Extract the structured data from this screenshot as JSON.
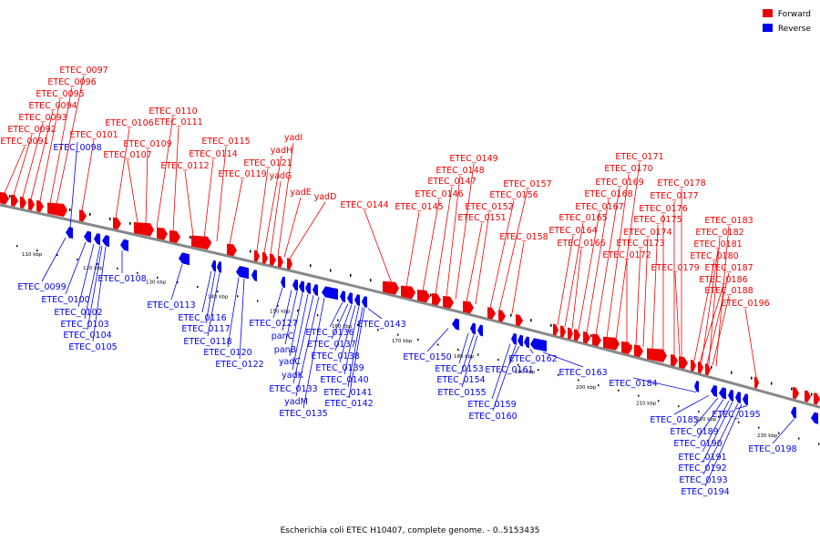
{
  "caption": "Escherichia coli ETEC H10407, complete genome. - 0..5153435",
  "colors": {
    "forward": "#ee0000",
    "reverse": "#0000ee",
    "backbone": "#888888"
  },
  "legend": [
    {
      "label": "Forward",
      "color": "#ee0000"
    },
    {
      "label": "Reverse",
      "color": "#0000ee"
    }
  ],
  "ticks": [
    "110 kbp",
    "120 kbp",
    "130 kbp",
    "140 kbp",
    "150 kbp",
    "160 kbp",
    "170 kbp",
    "180 kbp",
    "190 kbp",
    "200 kbp",
    "210 kbp",
    "220 kbp",
    "230 kbp"
  ],
  "forward_labels": [
    "ETEC_0091",
    "ETEC_0092",
    "ETEC_0093",
    "ETEC_0094",
    "ETEC_0095",
    "ETEC_0096",
    "ETEC_0097",
    "ETEC_0101",
    "ETEC_0106",
    "ETEC_0107",
    "ETEC_0109",
    "ETEC_0110",
    "ETEC_0111",
    "ETEC_0112",
    "ETEC_0114",
    "ETEC_0115",
    "ETEC_0119",
    "ETEC_0121",
    "yadH",
    "yadG",
    "yadI",
    "yadE",
    "yadD",
    "ETEC_0144",
    "ETEC_0145",
    "ETEC_0146",
    "ETEC_0147",
    "ETEC_0148",
    "ETEC_0149",
    "ETEC_0151",
    "ETEC_0152",
    "ETEC_0156",
    "ETEC_0157",
    "ETEC_0158",
    "ETEC_0164",
    "ETEC_0165",
    "ETEC_0166",
    "ETEC_0167",
    "ETEC_0168",
    "ETEC_0169",
    "ETEC_0170",
    "ETEC_0171",
    "ETEC_0172",
    "ETEC_0173",
    "ETEC_0174",
    "ETEC_0175",
    "ETEC_0176",
    "ETEC_0177",
    "ETEC_0178",
    "ETEC_0179",
    "ETEC_0180",
    "ETEC_0181",
    "ETEC_0182",
    "ETEC_0183",
    "ETEC_0186",
    "ETEC_0187",
    "ETEC_0188",
    "ETEC_0196"
  ],
  "reverse_labels": [
    "ETEC_0098",
    "ETEC_0099",
    "ETEC_0100",
    "ETEC_0102",
    "ETEC_0103",
    "ETEC_0104",
    "ETEC_0105",
    "ETEC_0108",
    "ETEC_0113",
    "ETEC_0116",
    "ETEC_0117",
    "ETEC_0118",
    "ETEC_0120",
    "ETEC_0122",
    "ETEC_0127",
    "panC",
    "panB",
    "yadC",
    "yadK",
    "ETEC_0133",
    "yadM",
    "ETEC_0135",
    "ETEC_0136",
    "ETEC_0137",
    "ETEC_0138",
    "ETEC_0139",
    "ETEC_0140",
    "ETEC_0141",
    "ETEC_0142",
    "ETEC_0143",
    "ETEC_0150",
    "ETEC_0153",
    "ETEC_0154",
    "ETEC_0155",
    "ETEC_0159",
    "ETEC_0160",
    "ETEC_0161",
    "ETEC_0162",
    "ETEC_0163",
    "ETEC_0184",
    "ETEC_0185",
    "ETEC_0189",
    "ETEC_0190",
    "ETEC_0191",
    "ETEC_0192",
    "ETEC_0193",
    "ETEC_0194",
    "ETEC_0195",
    "ETEC_0198"
  ]
}
